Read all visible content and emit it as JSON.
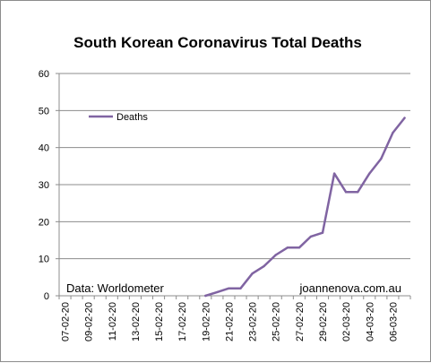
{
  "chart_data": {
    "type": "line",
    "title": "South Korean Coronavirus Total Deaths",
    "xlabel": "",
    "ylabel": "",
    "ylim": [
      0,
      60
    ],
    "yticks": [
      0,
      10,
      20,
      30,
      40,
      50,
      60
    ],
    "grid": "horizontal",
    "legend_position": "top-left",
    "tick_labels": [
      "07-02-20",
      "09-02-20",
      "11-02-20",
      "13-02-20",
      "15-02-20",
      "17-02-20",
      "19-02-20",
      "21-02-20",
      "23-02-20",
      "25-02-20",
      "27-02-20",
      "29-02-20",
      "02-03-20",
      "04-03-20",
      "06-03-20"
    ],
    "series": [
      {
        "name": "Deaths",
        "color": "#8064a2",
        "x": [
          "19-02-20",
          "20-02-20",
          "21-02-20",
          "22-02-20",
          "23-02-20",
          "24-02-20",
          "25-02-20",
          "26-02-20",
          "27-02-20",
          "28-02-20",
          "29-02-20",
          "01-03-20",
          "02-03-20",
          "03-03-20",
          "04-03-20",
          "05-03-20",
          "06-03-20",
          "07-03-20"
        ],
        "values": [
          0,
          1,
          2,
          2,
          6,
          8,
          11,
          13,
          13,
          16,
          17,
          33,
          28,
          28,
          33,
          37,
          44,
          48
        ]
      }
    ],
    "annotations": [
      "Data: Worldometer",
      "joannenova.com.au"
    ]
  }
}
